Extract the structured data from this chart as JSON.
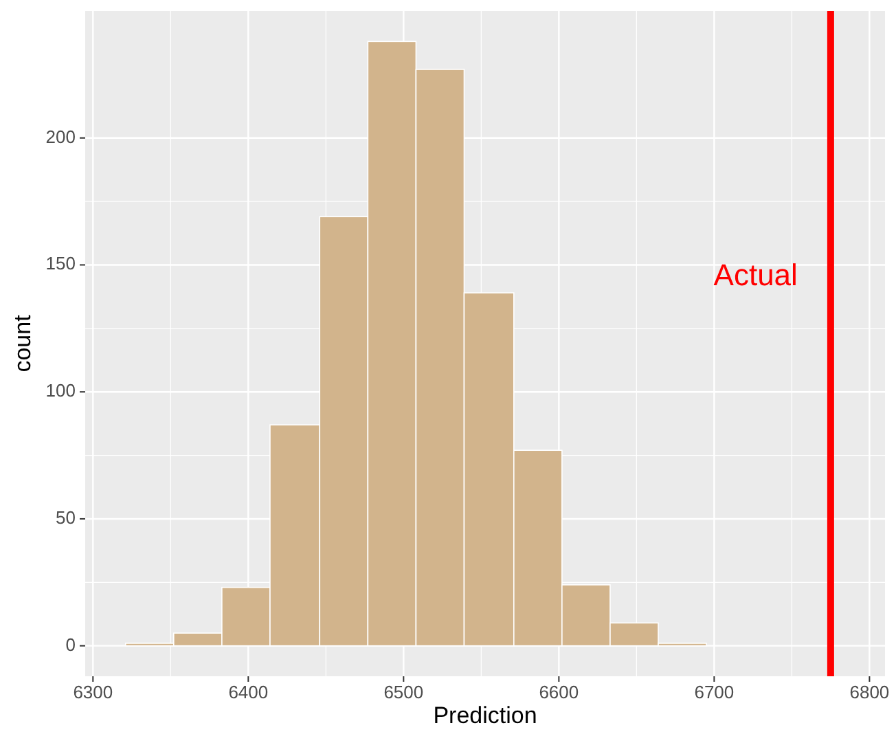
{
  "chart_data": {
    "type": "histogram",
    "xlabel": "Prediction",
    "ylabel": "count",
    "bins": [
      6321,
      6352,
      6383,
      6414,
      6446,
      6477,
      6508,
      6539,
      6571,
      6602,
      6633,
      6664,
      6695
    ],
    "values": [
      1,
      5,
      23,
      87,
      169,
      238,
      227,
      139,
      77,
      24,
      9,
      1
    ],
    "color": "#d2b48c",
    "xlim": [
      6295,
      6810
    ],
    "ylim": [
      -12,
      250
    ],
    "xticks": [
      6300,
      6400,
      6500,
      6600,
      6700,
      6800
    ],
    "yticks": [
      0,
      50,
      100,
      150,
      200
    ],
    "grid": true,
    "ref_lines": [
      {
        "axis": "x",
        "value": 6775,
        "color": "#ff0000",
        "label": "Actual"
      }
    ]
  }
}
